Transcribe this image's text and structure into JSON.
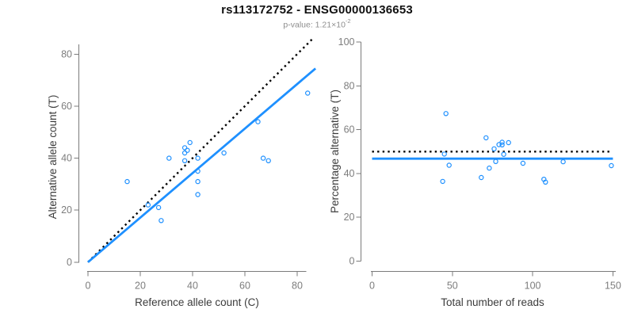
{
  "header": {
    "title": "rs113172752 - ENSG00000136653",
    "subtitle_base": "p-value: 1.21×10",
    "subtitle_exponent": "-2"
  },
  "colors": {
    "point_blue": "#1E90FF",
    "fit_blue": "#1E90FF",
    "reference_black": "#000000",
    "axis_gray": "#7b7b7b",
    "tick_label_gray": "#7d7d7d",
    "axis_title_gray": "#3c3c3c",
    "subtitle_gray": "#8e8e8e"
  },
  "chart_data": [
    {
      "type": "scatter",
      "title": "",
      "xlabel": "Reference allele count (C)",
      "ylabel": "Alternative allele count (T)",
      "xlim": [
        0,
        87
      ],
      "ylim": [
        0,
        84
      ],
      "xticks": [
        0,
        20,
        40,
        60,
        80
      ],
      "yticks": [
        0,
        20,
        40,
        60,
        80
      ],
      "grid": false,
      "legend": "none",
      "points": [
        [
          15,
          31
        ],
        [
          23,
          22
        ],
        [
          27,
          21
        ],
        [
          28,
          16
        ],
        [
          31,
          40
        ],
        [
          37,
          39
        ],
        [
          37,
          42
        ],
        [
          37,
          44
        ],
        [
          38,
          43
        ],
        [
          39,
          46
        ],
        [
          42,
          40
        ],
        [
          42,
          35
        ],
        [
          42,
          31
        ],
        [
          42,
          26
        ],
        [
          52,
          42
        ],
        [
          65,
          54
        ],
        [
          67,
          40
        ],
        [
          69,
          39
        ],
        [
          84,
          65
        ]
      ],
      "lines": [
        {
          "name": "identity-line",
          "style": "dotted",
          "color": "#000000",
          "x1": 0,
          "y1": 0,
          "x2": 86,
          "y2": 86
        },
        {
          "name": "fit-line",
          "style": "solid",
          "color": "#1E90FF",
          "x1": 0,
          "y1": 0,
          "x2": 87,
          "y2": 74.5
        }
      ]
    },
    {
      "type": "scatter",
      "title": "",
      "xlabel": "Total number of reads",
      "ylabel": "Percentage alternative (T)",
      "xlim": [
        0,
        152
      ],
      "ylim": [
        0,
        100
      ],
      "xticks": [
        0,
        50,
        100,
        150
      ],
      "yticks": [
        0,
        20,
        40,
        60,
        80,
        100
      ],
      "grid": false,
      "legend": "none",
      "points": [
        [
          46,
          67.4
        ],
        [
          45,
          48.9
        ],
        [
          48,
          43.8
        ],
        [
          44,
          36.4
        ],
        [
          71,
          56.3
        ],
        [
          76,
          51.3
        ],
        [
          79,
          53.2
        ],
        [
          81,
          54.3
        ],
        [
          81,
          53.1
        ],
        [
          85,
          54.1
        ],
        [
          82,
          48.8
        ],
        [
          77,
          45.5
        ],
        [
          73,
          42.5
        ],
        [
          68,
          38.2
        ],
        [
          94,
          44.7
        ],
        [
          119,
          45.4
        ],
        [
          107,
          37.4
        ],
        [
          108,
          36.1
        ],
        [
          149,
          43.6
        ]
      ],
      "lines": [
        {
          "name": "expected-50pct-line",
          "style": "dotted",
          "color": "#000000",
          "x1": 0,
          "y1": 50,
          "x2": 148,
          "y2": 50
        },
        {
          "name": "fit-line",
          "style": "solid",
          "color": "#1E90FF",
          "x1": 0,
          "y1": 46.8,
          "x2": 150,
          "y2": 46.8
        }
      ]
    }
  ]
}
